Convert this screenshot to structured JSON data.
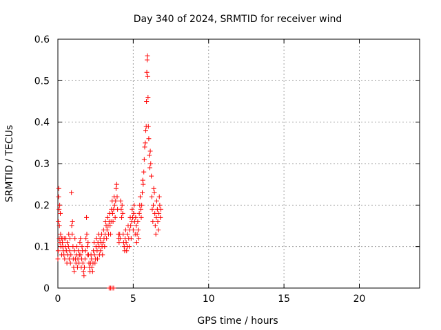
{
  "chart_data": {
    "type": "scatter",
    "title": "Day 340 of 2024, SRMTID for receiver wind",
    "xlabel": "GPS time / hours",
    "ylabel": "SRMTID / TECUs",
    "xlim": [
      0,
      24
    ],
    "ylim": [
      0,
      0.6
    ],
    "x_ticks": [
      0,
      5,
      10,
      15,
      20
    ],
    "x_tick_labels": [
      "0",
      "5",
      "10",
      "15",
      "20"
    ],
    "y_ticks": [
      0,
      0.1,
      0.2,
      0.3,
      0.4,
      0.5,
      0.6
    ],
    "y_tick_labels": [
      "0",
      "0.1",
      "0.2",
      "0.3",
      "0.4",
      "0.5",
      "0.6"
    ],
    "grid": true,
    "marker": "plus",
    "series": [
      {
        "name": "wind",
        "color": "#ff0000",
        "points": [
          [
            0.0,
            0.07
          ],
          [
            0.02,
            0.09
          ],
          [
            0.03,
            0.16
          ],
          [
            0.05,
            0.22
          ],
          [
            0.06,
            0.24
          ],
          [
            0.08,
            0.19
          ],
          [
            0.09,
            0.12
          ],
          [
            0.1,
            0.15
          ],
          [
            0.12,
            0.2
          ],
          [
            0.14,
            0.11
          ],
          [
            0.16,
            0.18
          ],
          [
            0.18,
            0.13
          ],
          [
            0.2,
            0.1
          ],
          [
            0.22,
            0.12
          ],
          [
            0.25,
            0.08
          ],
          [
            0.28,
            0.12
          ],
          [
            0.3,
            0.11
          ],
          [
            0.33,
            0.1
          ],
          [
            0.36,
            0.09
          ],
          [
            0.4,
            0.08
          ],
          [
            0.42,
            0.12
          ],
          [
            0.45,
            0.07
          ],
          [
            0.5,
            0.1
          ],
          [
            0.53,
            0.12
          ],
          [
            0.56,
            0.09
          ],
          [
            0.6,
            0.06
          ],
          [
            0.62,
            0.11
          ],
          [
            0.65,
            0.08
          ],
          [
            0.7,
            0.1
          ],
          [
            0.72,
            0.13
          ],
          [
            0.75,
            0.07
          ],
          [
            0.78,
            0.09
          ],
          [
            0.8,
            0.12
          ],
          [
            0.83,
            0.06
          ],
          [
            0.86,
            0.08
          ],
          [
            0.9,
            0.23
          ],
          [
            0.92,
            0.15
          ],
          [
            0.95,
            0.13
          ],
          [
            0.97,
            0.16
          ],
          [
            1.0,
            0.1
          ],
          [
            1.02,
            0.07
          ],
          [
            1.05,
            0.05
          ],
          [
            1.08,
            0.04
          ],
          [
            1.1,
            0.09
          ],
          [
            1.13,
            0.12
          ],
          [
            1.16,
            0.07
          ],
          [
            1.2,
            0.06
          ],
          [
            1.23,
            0.08
          ],
          [
            1.26,
            0.1
          ],
          [
            1.3,
            0.05
          ],
          [
            1.33,
            0.07
          ],
          [
            1.36,
            0.09
          ],
          [
            1.4,
            0.06
          ],
          [
            1.43,
            0.08
          ],
          [
            1.46,
            0.11
          ],
          [
            1.5,
            0.12
          ],
          [
            1.52,
            0.08
          ],
          [
            1.55,
            0.05
          ],
          [
            1.58,
            0.07
          ],
          [
            1.6,
            0.1
          ],
          [
            1.63,
            0.09
          ],
          [
            1.66,
            0.06
          ],
          [
            1.7,
            0.04
          ],
          [
            1.73,
            0.03
          ],
          [
            1.76,
            0.05
          ],
          [
            1.8,
            0.07
          ],
          [
            1.83,
            0.09
          ],
          [
            1.86,
            0.12
          ],
          [
            1.9,
            0.17
          ],
          [
            1.92,
            0.13
          ],
          [
            1.95,
            0.1
          ],
          [
            1.98,
            0.08
          ],
          [
            2.0,
            0.11
          ],
          [
            2.03,
            0.08
          ],
          [
            2.06,
            0.06
          ],
          [
            2.1,
            0.05
          ],
          [
            2.13,
            0.04
          ],
          [
            2.16,
            0.06
          ],
          [
            2.2,
            0.08
          ],
          [
            2.23,
            0.07
          ],
          [
            2.26,
            0.05
          ],
          [
            2.3,
            0.04
          ],
          [
            2.33,
            0.06
          ],
          [
            2.36,
            0.09
          ],
          [
            2.4,
            0.11
          ],
          [
            2.43,
            0.08
          ],
          [
            2.46,
            0.06
          ],
          [
            2.5,
            0.07
          ],
          [
            2.53,
            0.1
          ],
          [
            2.56,
            0.12
          ],
          [
            2.6,
            0.09
          ],
          [
            2.63,
            0.07
          ],
          [
            2.66,
            0.11
          ],
          [
            2.7,
            0.13
          ],
          [
            2.73,
            0.1
          ],
          [
            2.76,
            0.08
          ],
          [
            2.8,
            0.12
          ],
          [
            2.83,
            0.09
          ],
          [
            2.86,
            0.11
          ],
          [
            2.9,
            0.13
          ],
          [
            2.93,
            0.1
          ],
          [
            2.96,
            0.08
          ],
          [
            3.0,
            0.11
          ],
          [
            3.03,
            0.14
          ],
          [
            3.06,
            0.12
          ],
          [
            3.1,
            0.1
          ],
          [
            3.13,
            0.13
          ],
          [
            3.16,
            0.16
          ],
          [
            3.2,
            0.15
          ],
          [
            3.23,
            0.12
          ],
          [
            3.26,
            0.14
          ],
          [
            3.3,
            0.17
          ],
          [
            3.33,
            0.15
          ],
          [
            3.36,
            0.13
          ],
          [
            3.4,
            0.16
          ],
          [
            3.43,
            0.18
          ],
          [
            3.46,
            0.15
          ],
          [
            3.5,
            0.13
          ],
          [
            3.53,
            0.16
          ],
          [
            3.56,
            0.19
          ],
          [
            3.6,
            0.21
          ],
          [
            3.63,
            0.18
          ],
          [
            3.66,
            0.16
          ],
          [
            3.7,
            0.19
          ],
          [
            3.73,
            0.22
          ],
          [
            3.76,
            0.2
          ],
          [
            3.8,
            0.17
          ],
          [
            3.83,
            0.21
          ],
          [
            3.86,
            0.24
          ],
          [
            3.9,
            0.25
          ],
          [
            3.93,
            0.22
          ],
          [
            3.96,
            0.19
          ],
          [
            4.0,
            0.13
          ],
          [
            4.03,
            0.12
          ],
          [
            4.06,
            0.11
          ],
          [
            4.1,
            0.13
          ],
          [
            4.13,
            0.12
          ],
          [
            4.16,
            0.21
          ],
          [
            4.2,
            0.19
          ],
          [
            4.23,
            0.17
          ],
          [
            4.26,
            0.2
          ],
          [
            4.3,
            0.18
          ],
          [
            4.33,
            0.13
          ],
          [
            4.36,
            0.11
          ],
          [
            4.4,
            0.1
          ],
          [
            4.43,
            0.09
          ],
          [
            4.46,
            0.12
          ],
          [
            4.5,
            0.14
          ],
          [
            4.53,
            0.11
          ],
          [
            4.56,
            0.09
          ],
          [
            4.6,
            0.1
          ],
          [
            4.63,
            0.13
          ],
          [
            4.66,
            0.15
          ],
          [
            4.7,
            0.12
          ],
          [
            4.73,
            0.1
          ],
          [
            4.76,
            0.14
          ],
          [
            4.8,
            0.17
          ],
          [
            4.83,
            0.15
          ],
          [
            4.86,
            0.12
          ],
          [
            4.9,
            0.16
          ],
          [
            4.93,
            0.19
          ],
          [
            4.96,
            0.17
          ],
          [
            5.0,
            0.14
          ],
          [
            5.03,
            0.18
          ],
          [
            5.06,
            0.2
          ],
          [
            5.1,
            0.16
          ],
          [
            5.13,
            0.13
          ],
          [
            5.16,
            0.17
          ],
          [
            5.2,
            0.15
          ],
          [
            5.23,
            0.11
          ],
          [
            5.26,
            0.13
          ],
          [
            5.3,
            0.16
          ],
          [
            5.33,
            0.14
          ],
          [
            5.36,
            0.12
          ],
          [
            5.4,
            0.18
          ],
          [
            5.43,
            0.2
          ],
          [
            5.46,
            0.22
          ],
          [
            5.5,
            0.19
          ],
          [
            5.53,
            0.17
          ],
          [
            5.56,
            0.2
          ],
          [
            5.6,
            0.23
          ],
          [
            5.63,
            0.26
          ],
          [
            5.66,
            0.25
          ],
          [
            5.7,
            0.28
          ],
          [
            5.73,
            0.31
          ],
          [
            5.76,
            0.34
          ],
          [
            5.8,
            0.35
          ],
          [
            5.83,
            0.38
          ],
          [
            5.86,
            0.39
          ],
          [
            5.88,
            0.45
          ],
          [
            5.9,
            0.52
          ],
          [
            5.92,
            0.55
          ],
          [
            5.94,
            0.56
          ],
          [
            5.96,
            0.51
          ],
          [
            5.98,
            0.46
          ],
          [
            6.0,
            0.39
          ],
          [
            6.03,
            0.36
          ],
          [
            6.06,
            0.32
          ],
          [
            6.1,
            0.29
          ],
          [
            6.13,
            0.33
          ],
          [
            6.16,
            0.3
          ],
          [
            6.2,
            0.27
          ],
          [
            6.23,
            0.22
          ],
          [
            6.26,
            0.19
          ],
          [
            6.3,
            0.16
          ],
          [
            6.33,
            0.2
          ],
          [
            6.36,
            0.24
          ],
          [
            6.4,
            0.23
          ],
          [
            6.43,
            0.18
          ],
          [
            6.46,
            0.15
          ],
          [
            6.5,
            0.13
          ],
          [
            6.53,
            0.17
          ],
          [
            6.56,
            0.21
          ],
          [
            6.6,
            0.19
          ],
          [
            6.63,
            0.16
          ],
          [
            6.66,
            0.14
          ],
          [
            6.7,
            0.18
          ],
          [
            6.73,
            0.22
          ],
          [
            6.76,
            0.2
          ],
          [
            6.8,
            0.17
          ],
          [
            6.83,
            0.19
          ],
          [
            3.4,
            0.0
          ],
          [
            3.5,
            0.0
          ],
          [
            3.6,
            0.0
          ],
          [
            3.7,
            0.0
          ]
        ]
      }
    ]
  }
}
